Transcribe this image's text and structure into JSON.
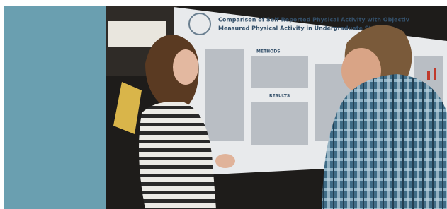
{
  "photo": {
    "poster": {
      "title_lines": [
        "Comparison of Self-Reported Physical Activity with Objectiv",
        "Measured Physical Activity in Undergraduate Students"
      ],
      "headings": [
        "METHODS",
        "RESULTS"
      ]
    }
  }
}
